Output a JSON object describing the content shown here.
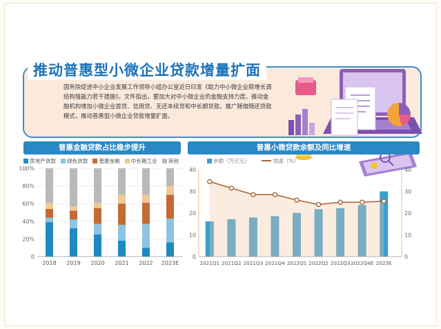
{
  "title": "推动普惠型小微企业贷款增量扩面",
  "intro": "国务院促进中小企业发展工作领导小组办公室近日印发《助力中小微企业稳增长调结构强能力若干措施》。文件指出，要加大对中小微企业的金融支持力度。推动金融机构增加小微企业首贷、信用贷、无还本续贷和中长期贷款，推广随借随还贷款模式，推动普惠型小微企业贷款增量扩面。",
  "colors": {
    "accent": "#1c72b8",
    "header_bg": "#fbe9dc",
    "panel_title": "#2a88c4",
    "bar_blue": "#3a9fcf",
    "line_brown": "#a5653a"
  },
  "chart_data": [
    {
      "type": "bar",
      "stacked": true,
      "title": "普惠金融贷款占比稳步提升",
      "categories": [
        "2018",
        "2019",
        "2020",
        "2021",
        "2022",
        "2023E"
      ],
      "y_ticks": [
        "0",
        "20%",
        "40%",
        "60%",
        "80%",
        "100%"
      ],
      "ylim": [
        0,
        100
      ],
      "legend_placement": "top",
      "series": [
        {
          "name": "房地产贷款",
          "color": "#1f8ac0",
          "values": [
            39,
            32,
            25,
            18,
            10,
            16
          ]
        },
        {
          "name": "绿色贷款",
          "color": "#8cc4e2",
          "values": [
            5,
            10,
            12,
            18,
            27,
            27
          ]
        },
        {
          "name": "普惠金融",
          "color": "#c46a35",
          "values": [
            10,
            10,
            18,
            24,
            24,
            27
          ]
        },
        {
          "name": "中长期工业",
          "color": "#f0c89c",
          "values": [
            7,
            5,
            6,
            10,
            9,
            10
          ]
        },
        {
          "name": "其他",
          "color": "#b9b9b9",
          "values": [
            39,
            43,
            39,
            30,
            30,
            20
          ]
        }
      ]
    },
    {
      "type": "bar",
      "title": "普惠小微贷款余额及同比增速",
      "categories": [
        "2021Q1",
        "2021Q2",
        "2021Q3",
        "2021Q4",
        "2022Q1",
        "2022Q2",
        "2022Q3",
        "2022Q4E",
        "2023E"
      ],
      "y_left_ticks": [
        "0",
        "10",
        "20",
        "30",
        "40"
      ],
      "y_right_ticks": [
        "0",
        "10",
        "20",
        "30",
        "40"
      ],
      "ylim": [
        0,
        40
      ],
      "legend_placement": "top",
      "series": [
        {
          "name": "余额（万亿元）",
          "type": "bar",
          "axis": "left",
          "color": "#3a9fcf",
          "values": [
            16.2,
            17.2,
            18.0,
            18.6,
            20.1,
            21.8,
            22.3,
            23.7,
            30.0
          ]
        },
        {
          "name": "增速（%）",
          "type": "line",
          "axis": "right",
          "color": "#a5653a",
          "values": [
            34.5,
            31.5,
            28.5,
            28.5,
            26.0,
            24.0,
            25.0,
            25.0,
            25.5
          ]
        }
      ]
    }
  ]
}
